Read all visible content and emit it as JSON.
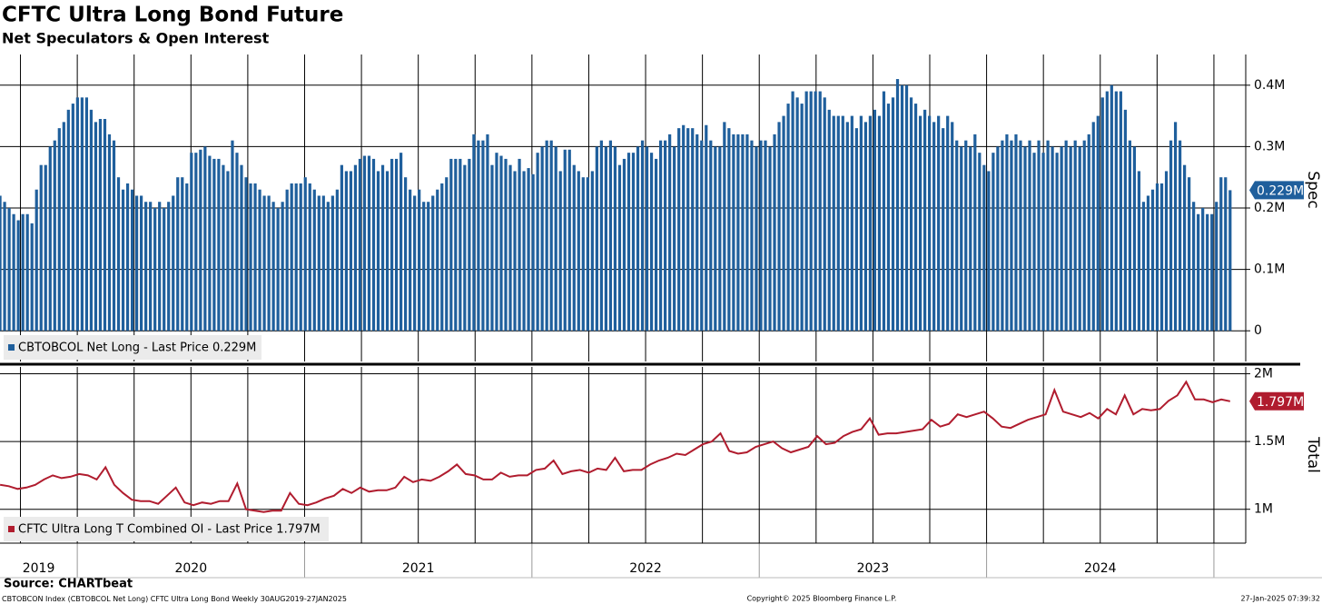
{
  "chart_data": [
    {
      "type": "bar",
      "title": "CFTC Ultra Long Bond Future",
      "subtitle": "Net Speculators & Open Interest",
      "ylabel": "Spec",
      "ylim": [
        -0.05,
        0.45
      ],
      "yticks": [
        0,
        {
          "value": 0.1,
          "label": "0.1M"
        },
        {
          "value": 0.2,
          "label": "0.2M"
        },
        {
          "value": 0.3,
          "label": "0.3M"
        },
        {
          "value": 0.4,
          "label": "0.4M"
        }
      ],
      "series": [
        {
          "name": "CBTOBCOL Net Long - Last Price 0.229M",
          "color": "#1f5f9c",
          "last_label": "0.229M",
          "values": [
            0.22,
            0.21,
            0.2,
            0.19,
            0.18,
            0.19,
            0.19,
            0.175,
            0.23,
            0.27,
            0.27,
            0.3,
            0.31,
            0.33,
            0.34,
            0.36,
            0.37,
            0.38,
            0.38,
            0.38,
            0.36,
            0.34,
            0.345,
            0.345,
            0.32,
            0.31,
            0.25,
            0.23,
            0.24,
            0.23,
            0.22,
            0.22,
            0.21,
            0.21,
            0.2,
            0.21,
            0.2,
            0.21,
            0.22,
            0.25,
            0.25,
            0.24,
            0.29,
            0.29,
            0.295,
            0.3,
            0.285,
            0.28,
            0.28,
            0.27,
            0.26,
            0.31,
            0.29,
            0.27,
            0.25,
            0.24,
            0.24,
            0.23,
            0.22,
            0.22,
            0.21,
            0.2,
            0.21,
            0.23,
            0.24,
            0.24,
            0.24,
            0.25,
            0.24,
            0.23,
            0.22,
            0.22,
            0.21,
            0.22,
            0.23,
            0.27,
            0.26,
            0.26,
            0.27,
            0.28,
            0.285,
            0.285,
            0.28,
            0.26,
            0.27,
            0.26,
            0.28,
            0.28,
            0.29,
            0.25,
            0.23,
            0.22,
            0.23,
            0.21,
            0.21,
            0.22,
            0.23,
            0.24,
            0.25,
            0.28,
            0.28,
            0.28,
            0.27,
            0.28,
            0.32,
            0.31,
            0.31,
            0.32,
            0.27,
            0.29,
            0.285,
            0.28,
            0.27,
            0.26,
            0.28,
            0.26,
            0.265,
            0.255,
            0.29,
            0.3,
            0.31,
            0.31,
            0.3,
            0.26,
            0.295,
            0.295,
            0.27,
            0.26,
            0.25,
            0.25,
            0.26,
            0.3,
            0.31,
            0.3,
            0.31,
            0.3,
            0.27,
            0.28,
            0.29,
            0.29,
            0.3,
            0.31,
            0.3,
            0.29,
            0.28,
            0.31,
            0.31,
            0.32,
            0.3,
            0.33,
            0.335,
            0.33,
            0.33,
            0.32,
            0.31,
            0.335,
            0.31,
            0.3,
            0.3,
            0.34,
            0.33,
            0.32,
            0.32,
            0.32,
            0.32,
            0.31,
            0.3,
            0.31,
            0.31,
            0.3,
            0.32,
            0.34,
            0.35,
            0.37,
            0.39,
            0.38,
            0.37,
            0.39,
            0.39,
            0.39,
            0.39,
            0.38,
            0.36,
            0.35,
            0.35,
            0.35,
            0.34,
            0.35,
            0.33,
            0.35,
            0.34,
            0.35,
            0.36,
            0.35,
            0.39,
            0.37,
            0.38,
            0.41,
            0.4,
            0.4,
            0.38,
            0.37,
            0.35,
            0.36,
            0.35,
            0.34,
            0.35,
            0.33,
            0.35,
            0.34,
            0.31,
            0.3,
            0.31,
            0.3,
            0.32,
            0.29,
            0.27,
            0.26,
            0.29,
            0.3,
            0.31,
            0.32,
            0.31,
            0.32,
            0.31,
            0.3,
            0.31,
            0.29,
            0.31,
            0.29,
            0.31,
            0.3,
            0.29,
            0.3,
            0.31,
            0.3,
            0.31,
            0.3,
            0.31,
            0.32,
            0.34,
            0.35,
            0.38,
            0.39,
            0.4,
            0.39,
            0.39,
            0.36,
            0.31,
            0.3,
            0.26,
            0.21,
            0.22,
            0.23,
            0.24,
            0.24,
            0.26,
            0.31,
            0.34,
            0.31,
            0.27,
            0.25,
            0.21,
            0.19,
            0.2,
            0.19,
            0.19,
            0.21,
            0.25,
            0.25,
            0.229
          ]
        }
      ]
    },
    {
      "type": "line",
      "ylabel": "Total",
      "ylim": [
        0.75,
        2.05
      ],
      "yticks": [
        {
          "value": 1,
          "label": "1M"
        },
        {
          "value": 1.5,
          "label": "1.5M"
        },
        {
          "value": 2,
          "label": "2M"
        }
      ],
      "series": [
        {
          "name": "CFTC Ultra Long T Combined OI - Last Price 1.797M",
          "color": "#b01c2e",
          "last_label": "1.797M",
          "values": [
            1.18,
            1.17,
            1.15,
            1.16,
            1.18,
            1.22,
            1.25,
            1.23,
            1.24,
            1.26,
            1.25,
            1.22,
            1.31,
            1.18,
            1.12,
            1.07,
            1.06,
            1.06,
            1.04,
            1.1,
            1.16,
            1.05,
            1.03,
            1.05,
            1.04,
            1.06,
            1.06,
            1.19,
            1.0,
            0.99,
            0.98,
            0.99,
            0.99,
            1.12,
            1.04,
            1.03,
            1.05,
            1.08,
            1.1,
            1.15,
            1.12,
            1.16,
            1.13,
            1.14,
            1.14,
            1.16,
            1.24,
            1.2,
            1.22,
            1.21,
            1.24,
            1.28,
            1.33,
            1.26,
            1.25,
            1.22,
            1.22,
            1.27,
            1.24,
            1.25,
            1.25,
            1.29,
            1.3,
            1.36,
            1.26,
            1.28,
            1.29,
            1.27,
            1.3,
            1.29,
            1.38,
            1.28,
            1.29,
            1.29,
            1.33,
            1.36,
            1.38,
            1.41,
            1.4,
            1.44,
            1.48,
            1.5,
            1.56,
            1.43,
            1.41,
            1.42,
            1.46,
            1.48,
            1.5,
            1.45,
            1.42,
            1.44,
            1.46,
            1.54,
            1.48,
            1.49,
            1.54,
            1.57,
            1.59,
            1.67,
            1.55,
            1.56,
            1.56,
            1.57,
            1.58,
            1.59,
            1.66,
            1.61,
            1.63,
            1.7,
            1.68,
            1.7,
            1.72,
            1.67,
            1.61,
            1.6,
            1.63,
            1.66,
            1.68,
            1.7,
            1.88,
            1.72,
            1.7,
            1.68,
            1.71,
            1.67,
            1.74,
            1.7,
            1.84,
            1.7,
            1.74,
            1.73,
            1.74,
            1.8,
            1.84,
            1.94,
            1.81,
            1.81,
            1.79,
            1.81,
            1.797
          ]
        }
      ]
    }
  ],
  "x_axis": {
    "xlim": [
      2019.66,
      2025.14
    ],
    "xticks": [
      2019.75,
      2020,
      2020.25,
      2020.5,
      2020.75,
      2021,
      2021.25,
      2021.5,
      2021.75,
      2022,
      2022.25,
      2022.5,
      2022.75,
      2023,
      2023.25,
      2023.5,
      2023.75,
      2024,
      2024.25,
      2024.5,
      2024.75,
      2025
    ],
    "years": [
      "2019",
      "2020",
      "2021",
      "2022",
      "2023",
      "2024"
    ]
  },
  "source": "Source: CHARTbeat",
  "footer": {
    "index": "CBTOBCON Index (CBTOBCOL Net Long) CFTC Ultra Long Bond  Weekly",
    "period": "30AUG2019-27JAN2025",
    "copyright": "Copyright© 2025 Bloomberg Finance L.P.",
    "timestamp": "27-Jan-2025 07:39:32"
  }
}
